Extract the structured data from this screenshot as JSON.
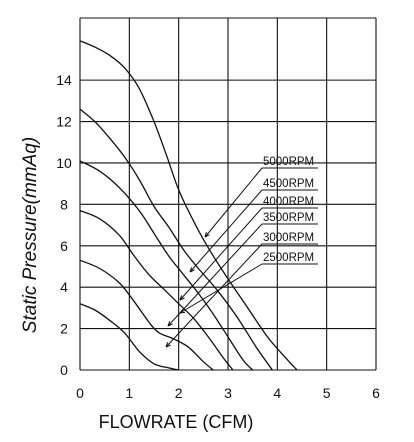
{
  "chart_data": {
    "type": "line",
    "title": "",
    "xlabel": "FLOWRATE (CFM)",
    "ylabel": "Static Pressure(mmAq)",
    "xlim": [
      0,
      6
    ],
    "ylim": [
      0,
      17
    ],
    "x_ticks": [
      0,
      1,
      2,
      3,
      4,
      5,
      6
    ],
    "y_ticks": [
      0,
      2,
      4,
      6,
      8,
      10,
      12,
      14
    ],
    "grid": true,
    "legend": "callout labels at right with leader lines",
    "series": [
      {
        "name": "5000RPM",
        "x": [
          0,
          0.3,
          0.6,
          0.9,
          1.2,
          1.5,
          1.75,
          2.0,
          2.3,
          2.6,
          3.0,
          3.4,
          3.8,
          4.2,
          4.4
        ],
        "y": [
          15.9,
          15.6,
          15.2,
          14.6,
          13.6,
          12.0,
          10.4,
          8.7,
          7.2,
          5.9,
          4.4,
          3.0,
          1.6,
          0.5,
          0
        ]
      },
      {
        "name": "4500RPM",
        "x": [
          0,
          0.3,
          0.6,
          0.9,
          1.2,
          1.5,
          1.8,
          2.1,
          2.4,
          2.8,
          3.2,
          3.6,
          3.9
        ],
        "y": [
          12.6,
          12.0,
          11.2,
          10.3,
          9.2,
          7.9,
          6.9,
          5.8,
          4.9,
          3.8,
          2.5,
          1.0,
          0
        ]
      },
      {
        "name": "4000RPM",
        "x": [
          0,
          0.4,
          0.8,
          1.2,
          1.5,
          1.8,
          2.1,
          2.4,
          2.7,
          3.0,
          3.3,
          3.5
        ],
        "y": [
          10.1,
          9.6,
          8.8,
          7.7,
          6.6,
          5.5,
          4.6,
          3.7,
          2.7,
          1.6,
          0.5,
          0
        ]
      },
      {
        "name": "3500RPM",
        "x": [
          0,
          0.4,
          0.8,
          1.1,
          1.4,
          1.7,
          2.0,
          2.3,
          2.6,
          2.9,
          3.1
        ],
        "y": [
          7.7,
          7.3,
          6.5,
          5.5,
          4.6,
          3.9,
          3.2,
          2.5,
          1.6,
          0.6,
          0
        ]
      },
      {
        "name": "3000RPM",
        "x": [
          0,
          0.4,
          0.8,
          1.1,
          1.4,
          1.6,
          1.9,
          2.2,
          2.5,
          2.7
        ],
        "y": [
          5.3,
          4.9,
          4.2,
          3.3,
          2.3,
          1.8,
          1.5,
          1.1,
          0.4,
          0
        ]
      },
      {
        "name": "2500RPM",
        "x": [
          0,
          0.3,
          0.6,
          0.9,
          1.2,
          1.5,
          1.8,
          2.0
        ],
        "y": [
          3.2,
          2.9,
          2.4,
          1.8,
          0.9,
          0.3,
          0.1,
          0
        ]
      }
    ]
  }
}
